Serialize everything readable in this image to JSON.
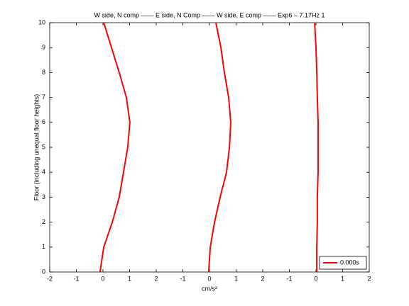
{
  "chart_data": {
    "type": "line",
    "title": "W side, N comp —— E side, N Comp —— W side, E comp —— Exp6 – 7.17Hz 1",
    "x_label": "cm/s²",
    "y_label": "Floor (including unequal floor heights)",
    "xlim": [
      -2,
      10
    ],
    "xticks": [
      -2,
      -1,
      0,
      1,
      2,
      {
        "value": 3,
        "label": "-1"
      },
      {
        "value": 4,
        "label": "0"
      },
      {
        "value": 5,
        "label": "1"
      },
      {
        "value": 6,
        "label": "2"
      },
      {
        "value": 7,
        "label": "-1"
      },
      {
        "value": 8,
        "label": "0"
      },
      {
        "value": 9,
        "label": "1"
      },
      {
        "value": 10,
        "label": "2"
      }
    ],
    "ylim": [
      0,
      10
    ],
    "yticks": [
      0,
      1,
      2,
      3,
      4,
      5,
      6,
      7,
      8,
      9,
      10
    ],
    "legend_position": "lower right",
    "series": [
      {
        "name": "0.000s",
        "color": "#ff0000",
        "x": [
          -0.11,
          0.03,
          0.35,
          0.61,
          0.77,
          0.93,
          1.01,
          0.88,
          0.61,
          0.32,
          0.03
        ],
        "values": [
          0,
          1,
          2,
          3,
          4,
          5,
          6,
          7,
          8,
          9,
          10
        ]
      },
      {
        "color": "#ff0000",
        "x": [
          3.97,
          4.03,
          4.19,
          4.4,
          4.64,
          4.75,
          4.8,
          4.72,
          4.56,
          4.43,
          4.24
        ],
        "values": [
          0,
          1,
          2,
          3,
          4,
          5,
          6,
          7,
          8,
          9,
          10
        ]
      },
      {
        "color": "#ff0000",
        "x": [
          8.03,
          8.03,
          8.05,
          8.05,
          8.08,
          8.08,
          8.08,
          8.05,
          8.03,
          8.0,
          7.95
        ],
        "values": [
          0,
          1,
          2,
          3,
          4,
          5,
          6,
          7,
          8,
          9,
          10
        ]
      }
    ]
  }
}
